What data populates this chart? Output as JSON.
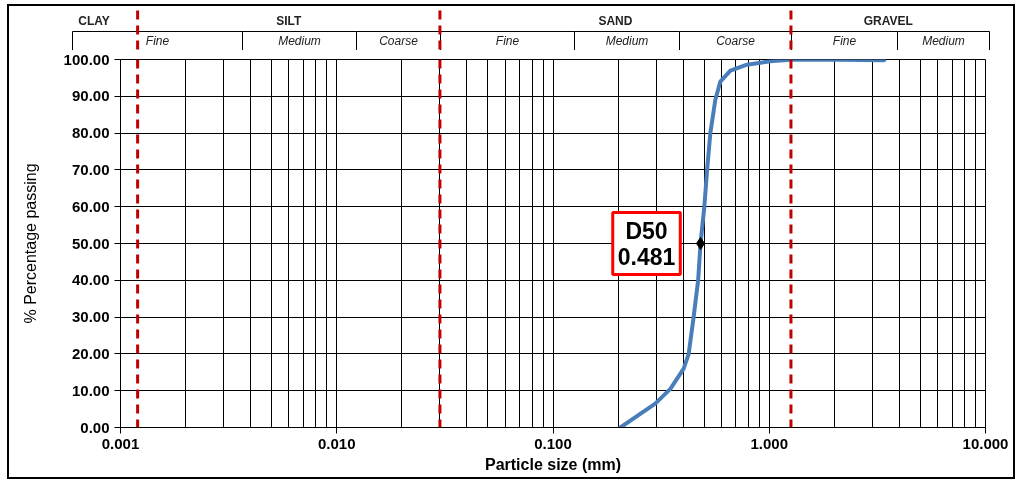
{
  "chart_data": {
    "type": "line",
    "xlabel": "Particle size (mm)",
    "ylabel": "% Percentage passing",
    "log": "x",
    "grid": true,
    "line_style": "solid",
    "xlim": [
      0.001,
      10
    ],
    "xticks": [
      0.001,
      {
        "value": 0.01,
        "label": "0.010"
      },
      {
        "value": 0.1,
        "label": "0.100"
      },
      {
        "value": 1,
        "label": "1.000"
      },
      {
        "value": 10,
        "label": "10.000"
      }
    ],
    "ylim": [
      0,
      100
    ],
    "yticks": [
      {
        "value": 0,
        "label": "0.00"
      },
      {
        "value": 10,
        "label": "10.00"
      },
      {
        "value": 20,
        "label": "20.00"
      },
      {
        "value": 30,
        "label": "30.00"
      },
      {
        "value": 40,
        "label": "40.00"
      },
      {
        "value": 50,
        "label": "50.00"
      },
      {
        "value": 60,
        "label": "60.00"
      },
      {
        "value": 70,
        "label": "70.00"
      },
      {
        "value": 80,
        "label": "80.00"
      },
      {
        "value": 90,
        "label": "90.00"
      },
      {
        "value": 100,
        "label": "100.00"
      }
    ],
    "series": [
      {
        "color": "#4a7ebb",
        "x": [
          0.205,
          0.297,
          0.349,
          0.402,
          0.424,
          0.447,
          0.469,
          0.481,
          0.501,
          0.516,
          0.534,
          0.563,
          0.594,
          0.661,
          0.789,
          1.01,
          1.25,
          1.6,
          3.4
        ],
        "values": [
          0,
          6.5,
          10.5,
          16,
          20,
          30,
          40,
          50,
          60,
          70,
          80,
          89,
          94,
          97,
          98.6,
          99.5,
          99.9,
          100,
          99.8
        ]
      }
    ],
    "ref_lines": [
      {
        "axis": "x",
        "value": 0.0012,
        "color": "#c00000",
        "line_style": "dashed"
      },
      {
        "axis": "x",
        "value": 0.03,
        "color": "#c00000",
        "line_style": "dashed"
      },
      {
        "axis": "x",
        "value": 1.26,
        "color": "#c00000",
        "line_style": "dashed"
      }
    ],
    "annotations": [
      "CLAY",
      "SILT",
      "SAND",
      "GRAVEL",
      "Fine",
      "Medium",
      "Coarse",
      "Fine",
      "Medium",
      "Coarse",
      "Fine",
      "Medium",
      {
        "text": "D50\n0.481",
        "x": 0.481,
        "y": 50
      }
    ]
  }
}
